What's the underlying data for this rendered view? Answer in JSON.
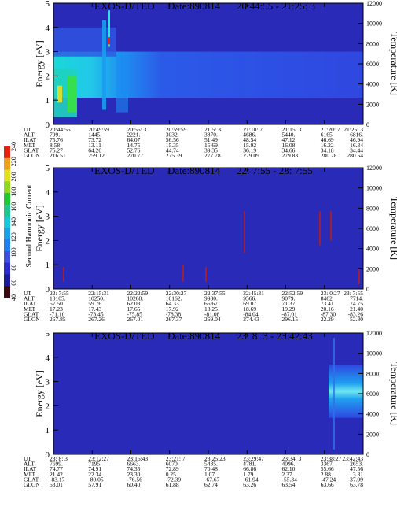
{
  "colors": {
    "background": "#2a2ab8",
    "cbar": [
      "#3a0a10",
      "#1b1b9a",
      "#2b2bd0",
      "#3f4fe0",
      "#1e7ff0",
      "#1aa0e8",
      "#19c8d8",
      "#1ec88c",
      "#20c830",
      "#90d820",
      "#e0e020",
      "#f0a018",
      "#e82010"
    ]
  },
  "colorbar": {
    "label": "Second Harmonic Current",
    "ticks": [
      "40",
      "60",
      "80",
      "100",
      "120",
      "140",
      "160",
      "180",
      "200",
      "220",
      "240"
    ]
  },
  "panels": [
    {
      "title": "EXOS-D/TED",
      "date": "Date:890814",
      "range": "20:44:55 - 21:25: 3",
      "ylabel": "Energy [eV]",
      "y2label": "Temperature [K]",
      "rows": [
        {
          "label": "UT",
          "values": [
            "20:44:55",
            "20:49:59",
            "20:55: 3",
            "20:59:59",
            "21:5: 3",
            "21:10: 7",
            "21:15: 3",
            "21:20: 7",
            "21:25: 3"
          ]
        },
        {
          "label": "ALT",
          "values": [
            "799.",
            "1445.",
            "2221.",
            "3032.",
            "3870.",
            "4686.",
            "5440.",
            "6165.",
            "6816."
          ]
        },
        {
          "label": "ILAT",
          "values": [
            "75.76",
            "73.72",
            "64.07",
            "56.56",
            "51.49",
            "48.54",
            "47.12",
            "46.69",
            "46.94"
          ]
        },
        {
          "label": "MLT",
          "values": [
            "8.58",
            "13.11",
            "14.75",
            "15.35",
            "15.69",
            "15.92",
            "16.08",
            "16.22",
            "16.34"
          ]
        },
        {
          "label": "GLAT",
          "values": [
            "75.27",
            "64.20",
            "52.76",
            "44.74",
            "39.35",
            "36.19",
            "34.66",
            "34.18",
            "34.44"
          ]
        },
        {
          "label": "GLON",
          "values": [
            "216.51",
            "259.12",
            "270.77",
            "275.39",
            "277.78",
            "279.09",
            "279.83",
            "280.28",
            "280.54"
          ]
        }
      ]
    },
    {
      "title": "EXOS-D/TED",
      "date": "Date:890814",
      "range": "22: 7:55 - 23: 7:55",
      "ylabel": "Energy [eV]",
      "y2label": "Temperature [K]",
      "rows": [
        {
          "label": "UT",
          "values": [
            "22: 7:55",
            "22:15:31",
            "22:22:59",
            "22:30:27",
            "22:37:55",
            "22:45:31",
            "22:52:59",
            "23: 0:27",
            "23: 7:55"
          ]
        },
        {
          "label": "ALT",
          "values": [
            "10105.",
            "10250.",
            "10268.",
            "10162.",
            "9930.",
            "9566.",
            "9079.",
            "8462.",
            "7714."
          ]
        },
        {
          "label": "ILAT",
          "values": [
            "57.50",
            "59.76",
            "62.03",
            "64.33",
            "66.67",
            "69.07",
            "71.37",
            "73.41",
            "74.75"
          ]
        },
        {
          "label": "MLT",
          "values": [
            "17.23",
            "17.43",
            "17.65",
            "17.92",
            "18.25",
            "18.69",
            "19.29",
            "20.16",
            "21.40"
          ]
        },
        {
          "label": "GLAT",
          "values": [
            "-71.10",
            "-73.45",
            "-75.85",
            "-78.38",
            "-81.08",
            "-84.04",
            "-87.01",
            "-87.30",
            "-83.26"
          ]
        },
        {
          "label": "GLON",
          "values": [
            "267.85",
            "267.26",
            "267.01",
            "267.37",
            "269.04",
            "274.43",
            "296.15",
            "22.29",
            "52.80"
          ]
        }
      ]
    },
    {
      "title": "EXOS-D/TED",
      "date": "Date:890814",
      "range": "23: 8: 3 - 23:42:43",
      "ylabel": "Energy [eV]",
      "y2label": "Temperature [K]",
      "rows": [
        {
          "label": "UT",
          "values": [
            "23: 8: 3",
            "23:12:27",
            "23:16:43",
            "23:21: 7",
            "23:25:23",
            "23:29:47",
            "23:34: 3",
            "23:38:27",
            "23:42:43"
          ]
        },
        {
          "label": "ALT",
          "values": [
            "7699.",
            "7195.",
            "6663.",
            "6070.",
            "5435.",
            "4781.",
            "4096.",
            "3367.",
            "2653."
          ]
        },
        {
          "label": "ILAT",
          "values": [
            "74.77",
            "74.91",
            "74.35",
            "72.89",
            "70.48",
            "66.86",
            "62.10",
            "55.66",
            "47.56"
          ]
        },
        {
          "label": "MLT",
          "values": [
            "21.42",
            "22.34",
            "23.30",
            "0.25",
            "1.07",
            "1.79",
            "2.37",
            "2.88",
            "3.31"
          ]
        },
        {
          "label": "GLAT",
          "values": [
            "-83.17",
            "-80.05",
            "-76.56",
            "-72.39",
            "-67.67",
            "-61.94",
            "-55.34",
            "-47.24",
            "-37.99"
          ]
        },
        {
          "label": "GLON",
          "values": [
            "53.01",
            "57.91",
            "60.40",
            "61.88",
            "62.74",
            "63.26",
            "63.54",
            "63.66",
            "63.78"
          ]
        }
      ]
    }
  ],
  "chart_data": [
    {
      "type": "heatmap",
      "title": "EXOS-D/TED Date:890814 20:44:55 - 21:25: 3",
      "xlabel": "UT",
      "ylabel": "Energy [eV]",
      "y2label": "Temperature [K]",
      "ylim": [
        0,
        5
      ],
      "y2lim": [
        0,
        12000
      ],
      "yticks": [
        0,
        1,
        2,
        3,
        4,
        5
      ],
      "y2ticks": [
        0,
        2000,
        4000,
        6000,
        8000,
        10000,
        12000
      ],
      "x": [
        "20:44:55",
        "20:49:59",
        "20:55: 3",
        "20:59:59",
        "21:5: 3",
        "21:10: 7",
        "21:15: 3",
        "21:20: 7",
        "21:25: 3"
      ]
    },
    {
      "type": "heatmap",
      "title": "EXOS-D/TED Date:890814 22: 7:55 - 23: 7:55",
      "xlabel": "UT",
      "ylabel": "Energy [eV]",
      "y2label": "Temperature [K]",
      "ylim": [
        0,
        5
      ],
      "y2lim": [
        0,
        12000
      ],
      "yticks": [
        0,
        1,
        2,
        3,
        4,
        5
      ],
      "y2ticks": [
        0,
        2000,
        4000,
        6000,
        8000,
        10000,
        12000
      ],
      "x": [
        "22: 7:55",
        "22:15:31",
        "22:22:59",
        "22:30:27",
        "22:37:55",
        "22:45:31",
        "22:52:59",
        "23: 0:27",
        "23: 7:55"
      ]
    },
    {
      "type": "heatmap",
      "title": "EXOS-D/TED Date:890814 23: 8: 3 - 23:42:43",
      "xlabel": "UT",
      "ylabel": "Energy [eV]",
      "y2label": "Temperature [K]",
      "ylim": [
        0,
        5
      ],
      "y2lim": [
        0,
        12000
      ],
      "yticks": [
        0,
        1,
        2,
        3,
        4,
        5
      ],
      "y2ticks": [
        0,
        2000,
        4000,
        6000,
        8000,
        10000,
        12000
      ],
      "x": [
        "23: 8: 3",
        "23:12:27",
        "23:16:43",
        "23:21: 7",
        "23:25:23",
        "23:29:47",
        "23:34: 3",
        "23:38:27",
        "23:42:43"
      ]
    }
  ]
}
